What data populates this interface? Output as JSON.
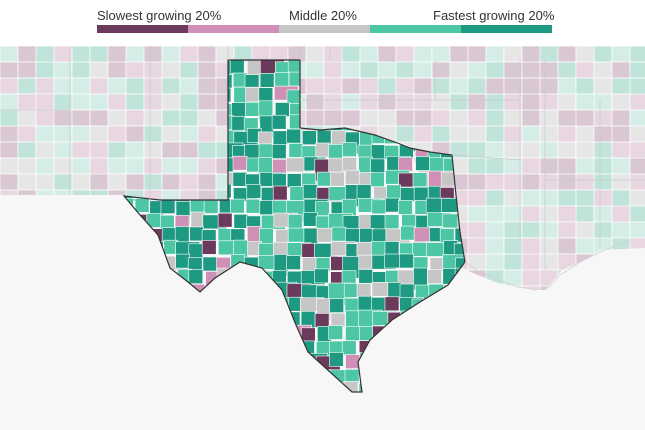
{
  "legend": {
    "labels": {
      "slowest": "Slowest growing 20%",
      "middle": "Middle 20%",
      "fastest": "Fastest growing 20%"
    },
    "bins": [
      {
        "rank": 1,
        "color": "#6b3a5c"
      },
      {
        "rank": 2,
        "color": "#cf8fb6"
      },
      {
        "rank": 3,
        "color": "#c6c6c6"
      },
      {
        "rank": 4,
        "color": "#4cc6a4"
      },
      {
        "rank": 5,
        "color": "#1f9a82"
      }
    ]
  },
  "map": {
    "highlighted_state": "Texas",
    "faded_colors": [
      "#d9c8d3",
      "#e8d6e1",
      "#e6e6e6",
      "#d5ede6",
      "#c1e4da"
    ],
    "ocean_color": "#f7f7f7",
    "border_color": "#333333"
  }
}
